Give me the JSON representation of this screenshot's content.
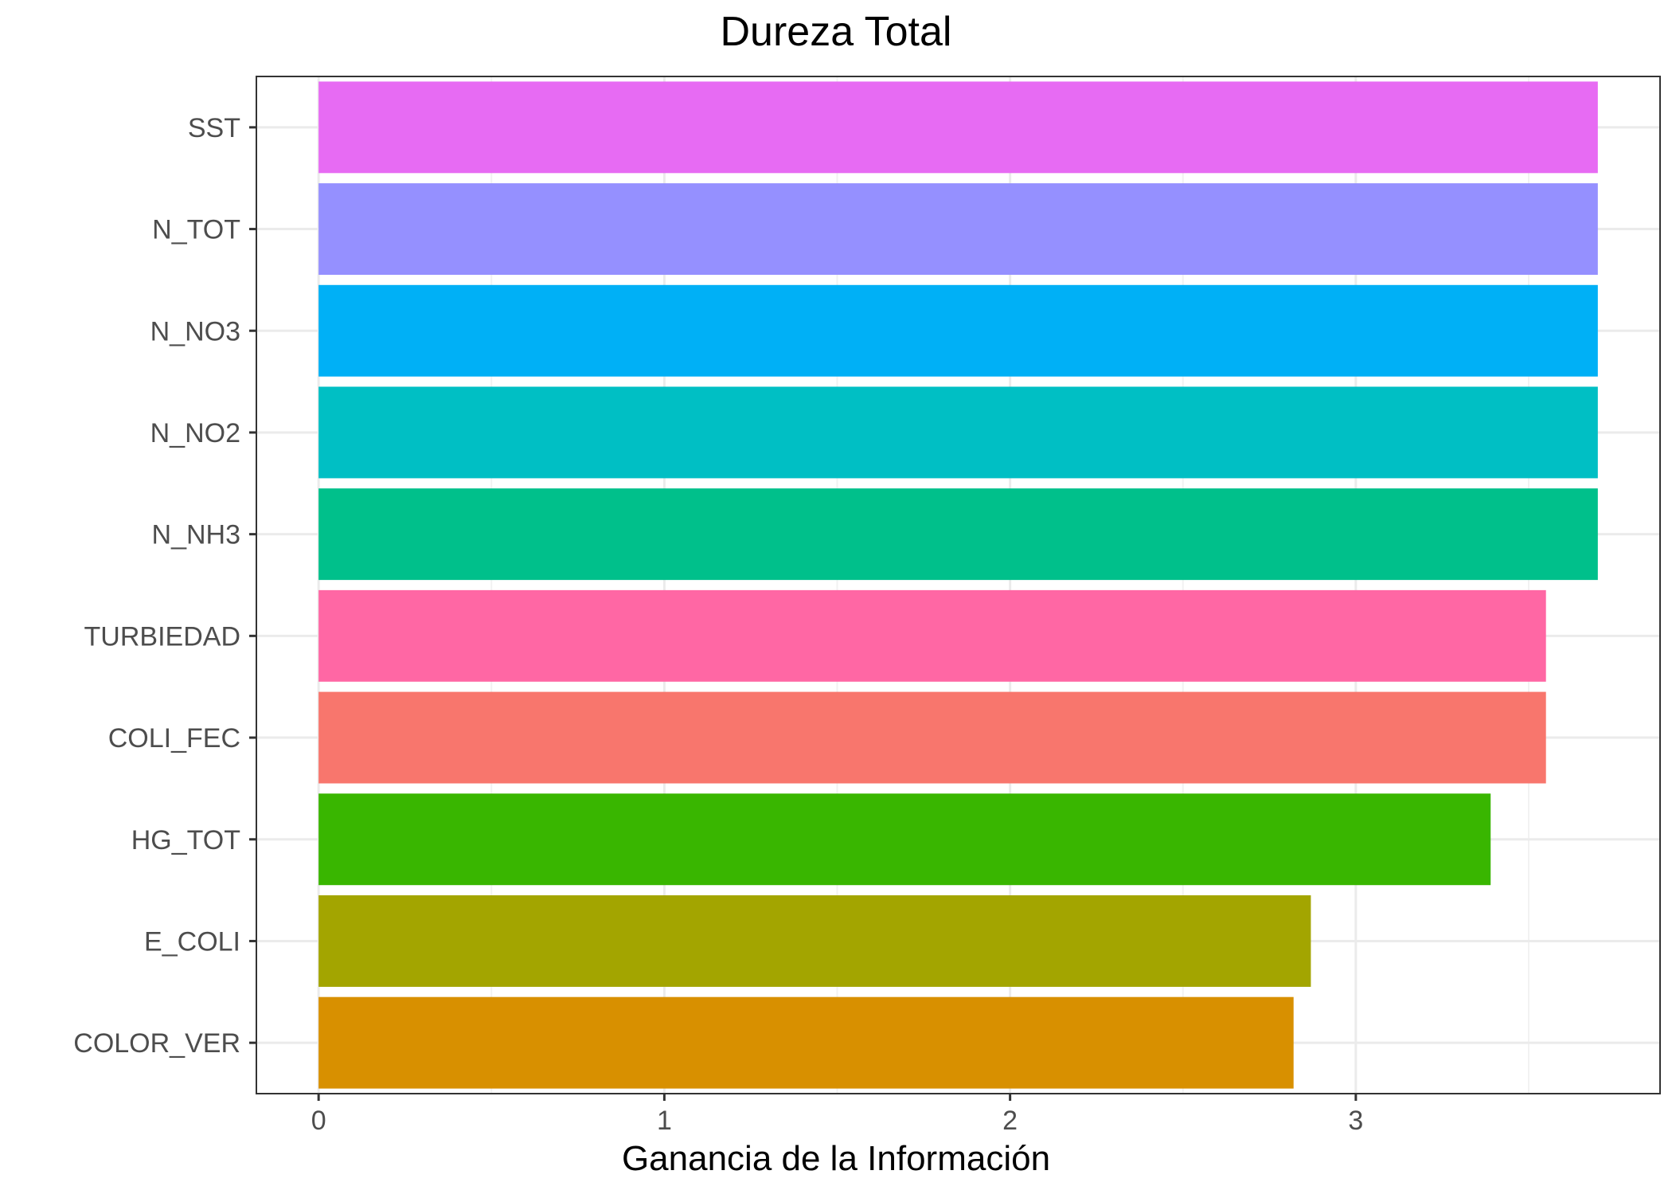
{
  "chart_data": {
    "type": "bar",
    "orientation": "horizontal",
    "title": "Dureza Total",
    "xlabel": "Ganancia de la Información",
    "ylabel": "",
    "xlim": [
      -0.18,
      3.88
    ],
    "xticks": [
      0,
      1,
      2,
      3
    ],
    "grid": true,
    "legend": "none",
    "categories": [
      "SST",
      "N_TOT",
      "N_NO3",
      "N_NO2",
      "N_NH3",
      "TURBIEDAD",
      "COLI_FEC",
      "HG_TOT",
      "E_COLI",
      "COLOR_VER"
    ],
    "values": [
      3.7,
      3.7,
      3.7,
      3.7,
      3.7,
      3.55,
      3.55,
      3.39,
      2.87,
      2.82
    ],
    "colors": [
      "#E76BF3",
      "#9590FF",
      "#00B0F6",
      "#00BFC4",
      "#00C08B",
      "#FF67A4",
      "#F8766D",
      "#39B600",
      "#A3A500",
      "#D89000"
    ]
  }
}
